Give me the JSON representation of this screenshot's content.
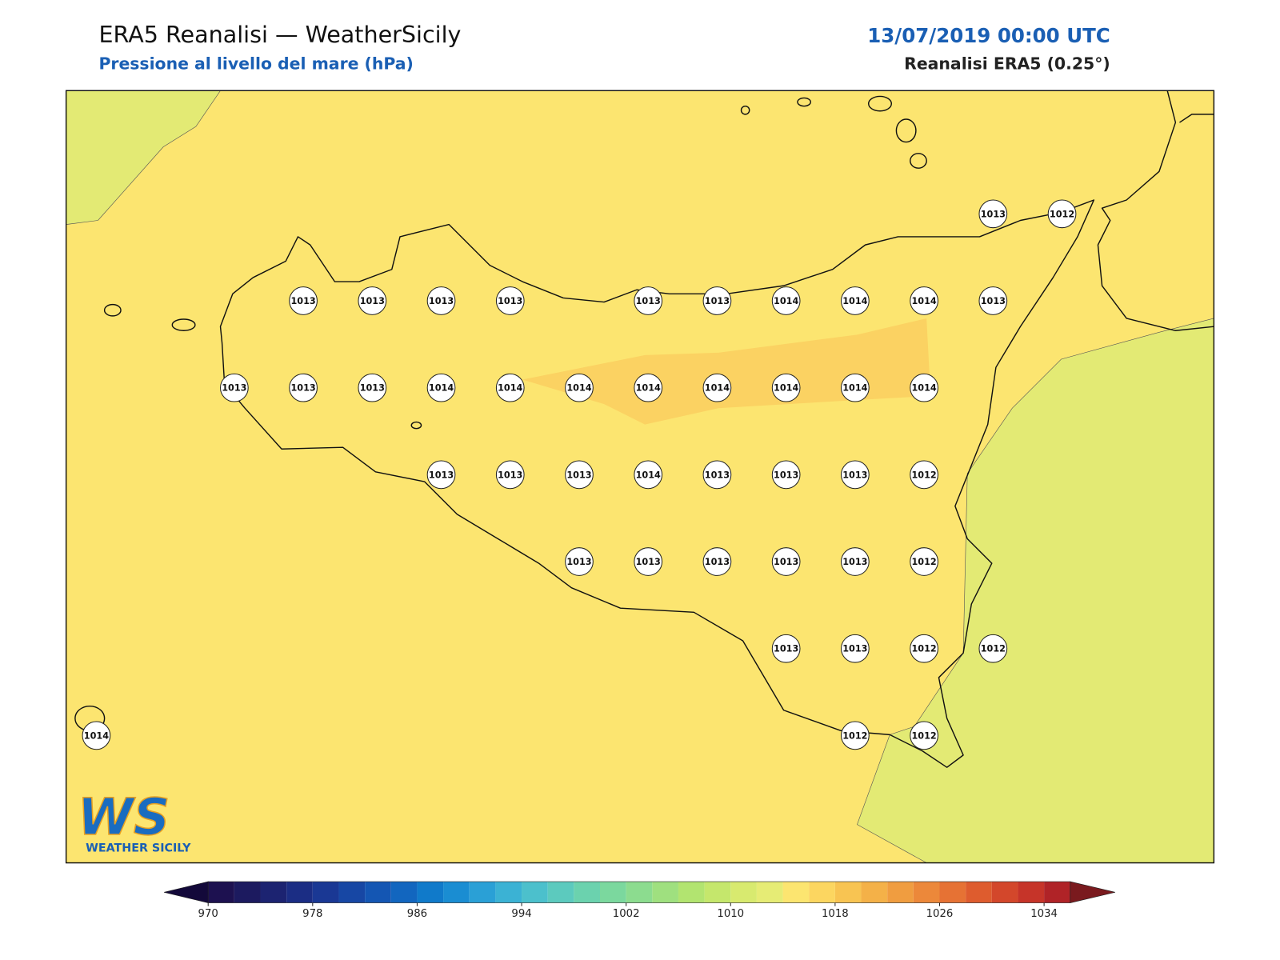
{
  "header": {
    "title": "ERA5 Reanalisi — WeatherSicily",
    "subtitle": "Pressione al livello del mare (hPa)",
    "date": "13/07/2019 00:00 UTC",
    "source": "Reanalisi ERA5 (0.25°)"
  },
  "points": [
    1013,
    1012,
    1013,
    1013,
    1013,
    1013,
    1013,
    1013,
    1014,
    1014,
    1014,
    1013,
    1013,
    1013,
    1013,
    1014,
    1014,
    1014,
    1014,
    1014,
    1014,
    1014,
    1014,
    1013,
    1013,
    1013,
    1014,
    1013,
    1013,
    1013,
    1012,
    1013,
    1013,
    1013,
    1013,
    1013,
    1012,
    1013,
    1013,
    1012,
    1012,
    1014,
    1012,
    1012
  ],
  "colorbar": {
    "levels": [
      970,
      972,
      974,
      976,
      978,
      980,
      982,
      984,
      986,
      988,
      990,
      992,
      994,
      996,
      998,
      1000,
      1002,
      1004,
      1006,
      1008,
      1010,
      1012,
      1014,
      1016,
      1018,
      1020,
      1022,
      1024,
      1026,
      1028,
      1030,
      1032,
      1034,
      1036
    ],
    "colors": [
      "#1d1150",
      "#1c1a5f",
      "#1c2371",
      "#1b2d84",
      "#1a3894",
      "#1747a4",
      "#1456b3",
      "#1266bf",
      "#107aca",
      "#1a8dd2",
      "#2aa0d6",
      "#3bb2d4",
      "#4cc0cc",
      "#5ccabe",
      "#6bd2ae",
      "#7bd89e",
      "#8cdc8f",
      "#9fe07f",
      "#b2e470",
      "#c5e76c",
      "#d8ea6f",
      "#e6ec75",
      "#fce570",
      "#fcd660",
      "#f8c452",
      "#f4b148",
      "#f09d40",
      "#ec883a",
      "#e67234",
      "#de5c2e",
      "#d3472b",
      "#c63429",
      "#b02327"
    ],
    "under_color": "#13093a",
    "over_color": "#7a1a1e",
    "ticks": [
      970,
      978,
      986,
      994,
      1002,
      1010,
      1018,
      1026,
      1034
    ]
  },
  "logo": {
    "letters": "WS",
    "name": "WEATHER SICILY"
  }
}
